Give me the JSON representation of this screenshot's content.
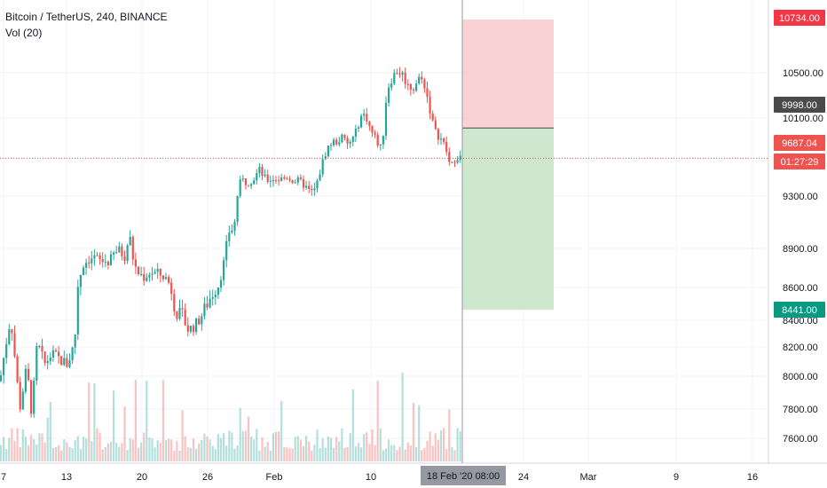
{
  "legend": {
    "symbol": "Bitcoin / TetherUS, 240, BINANCE",
    "indicator": "Vol (20)"
  },
  "chart_data": {
    "type": "candlestick",
    "symbol": "Bitcoin / TetherUS",
    "interval": "240",
    "exchange": "BINANCE",
    "y_axis": {
      "ticks": [
        7600,
        7800,
        8000,
        8200,
        8400,
        8600,
        8900,
        9300,
        10100,
        10500
      ],
      "tick_labels": [
        "7600.00",
        "7800.00",
        "8000.00",
        "8200.00",
        "8400.00",
        "8600.00",
        "8900.00",
        "9300.00",
        "10100.00",
        "10500.00"
      ]
    },
    "x_axis": {
      "tick_labels": [
        "7",
        "13",
        "20",
        "26",
        "Feb",
        "10",
        "24",
        "Mar",
        "9",
        "16"
      ],
      "crosshair_label": "18 Feb '20   08:00"
    },
    "price_badges": [
      {
        "name": "target",
        "value": "10734.00",
        "color": "#f23645"
      },
      {
        "name": "entry",
        "value": "9998.00",
        "color": "#4a4a4a"
      },
      {
        "name": "last-price",
        "value": "9687.04",
        "color": "#ef5350"
      },
      {
        "name": "countdown",
        "value": "01:27:29",
        "color": "#ef5350"
      },
      {
        "name": "stop",
        "value": "8441.00",
        "color": "#089981"
      }
    ],
    "position_tool": {
      "type": "short",
      "target": 10734,
      "entry": 9998,
      "stop": 8441,
      "profit_color": "#f9c9cc",
      "loss_color": "#c8e6c9"
    },
    "last_price": 9687.04,
    "colors": {
      "up": "#26a69a",
      "down": "#ef5350"
    },
    "price_path": [
      [
        0,
        7970
      ],
      [
        12,
        8420
      ],
      [
        22,
        7800
      ],
      [
        30,
        8050
      ],
      [
        36,
        7760
      ],
      [
        42,
        8230
      ],
      [
        50,
        8080
      ],
      [
        58,
        8150
      ],
      [
        66,
        8120
      ],
      [
        76,
        8080
      ],
      [
        84,
        8230
      ],
      [
        88,
        8640
      ],
      [
        94,
        8780
      ],
      [
        100,
        8820
      ],
      [
        106,
        8830
      ],
      [
        114,
        8800
      ],
      [
        120,
        8800
      ],
      [
        124,
        8800
      ],
      [
        130,
        8880
      ],
      [
        136,
        8880
      ],
      [
        140,
        8830
      ],
      [
        146,
        9000
      ],
      [
        150,
        8820
      ],
      [
        154,
        8720
      ],
      [
        162,
        8680
      ],
      [
        170,
        8720
      ],
      [
        180,
        8700
      ],
      [
        186,
        8680
      ],
      [
        192,
        8620
      ],
      [
        198,
        8450
      ],
      [
        206,
        8420
      ],
      [
        212,
        8330
      ],
      [
        220,
        8360
      ],
      [
        228,
        8440
      ],
      [
        238,
        8550
      ],
      [
        246,
        8620
      ],
      [
        252,
        8780
      ],
      [
        258,
        9030
      ],
      [
        264,
        9060
      ],
      [
        268,
        9340
      ],
      [
        272,
        9470
      ],
      [
        278,
        9440
      ],
      [
        286,
        9480
      ],
      [
        292,
        9570
      ],
      [
        300,
        9460
      ],
      [
        308,
        9480
      ],
      [
        316,
        9470
      ],
      [
        324,
        9500
      ],
      [
        330,
        9460
      ],
      [
        336,
        9450
      ],
      [
        342,
        9420
      ],
      [
        350,
        9330
      ],
      [
        356,
        9380
      ],
      [
        362,
        9600
      ],
      [
        368,
        9780
      ],
      [
        374,
        9850
      ],
      [
        380,
        9860
      ],
      [
        386,
        9900
      ],
      [
        392,
        9820
      ],
      [
        400,
        9920
      ],
      [
        406,
        10110
      ],
      [
        412,
        10130
      ],
      [
        418,
        9970
      ],
      [
        424,
        9880
      ],
      [
        430,
        9770
      ],
      [
        436,
        10350
      ],
      [
        442,
        10460
      ],
      [
        448,
        10520
      ],
      [
        454,
        10480
      ],
      [
        460,
        10380
      ],
      [
        466,
        10370
      ],
      [
        472,
        10450
      ],
      [
        478,
        10410
      ],
      [
        484,
        10200
      ],
      [
        490,
        9960
      ],
      [
        496,
        9900
      ],
      [
        502,
        9800
      ],
      [
        508,
        9580
      ],
      [
        514,
        9720
      ],
      [
        520,
        9687
      ]
    ]
  }
}
